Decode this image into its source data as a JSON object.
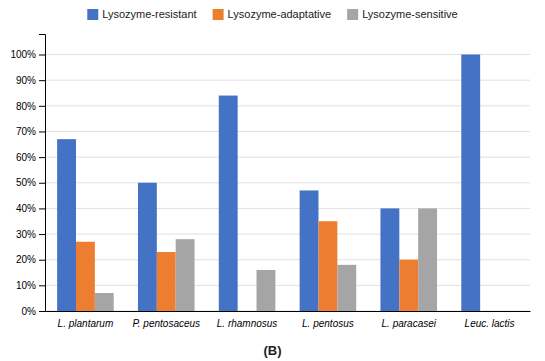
{
  "chart_data": {
    "type": "bar",
    "categories": [
      "L. plantarum",
      "P. pentosaceus",
      "L. rhamnosus",
      "L. pentosus",
      "L. paracasei",
      "Leuc. lactis"
    ],
    "series": [
      {
        "name": "Lysozyme-resistant",
        "color": "#4472C4",
        "values": [
          67,
          50,
          84,
          47,
          40,
          100
        ]
      },
      {
        "name": "Lysozyme-adaptative",
        "color": "#ED7D31",
        "values": [
          27,
          23,
          0,
          35,
          20,
          0
        ]
      },
      {
        "name": "Lysozyme-sensitive",
        "color": "#A5A5A5",
        "values": [
          7,
          28,
          16,
          18,
          40,
          0
        ]
      }
    ],
    "ylim": [
      0,
      108
    ],
    "yticks": [
      {
        "value": 0,
        "label": "0%"
      },
      {
        "value": 10,
        "label": "10%"
      },
      {
        "value": 20,
        "label": "20%"
      },
      {
        "value": 30,
        "label": "30%"
      },
      {
        "value": 40,
        "label": "40%"
      },
      {
        "value": 50,
        "label": "50%"
      },
      {
        "value": 60,
        "label": "60%"
      },
      {
        "value": 70,
        "label": "70%"
      },
      {
        "value": 80,
        "label": "80%"
      },
      {
        "value": 90,
        "label": "90%"
      },
      {
        "value": 100,
        "label": "100%"
      }
    ],
    "grid": true,
    "legend": "top",
    "annotations": [
      "(B)"
    ]
  }
}
